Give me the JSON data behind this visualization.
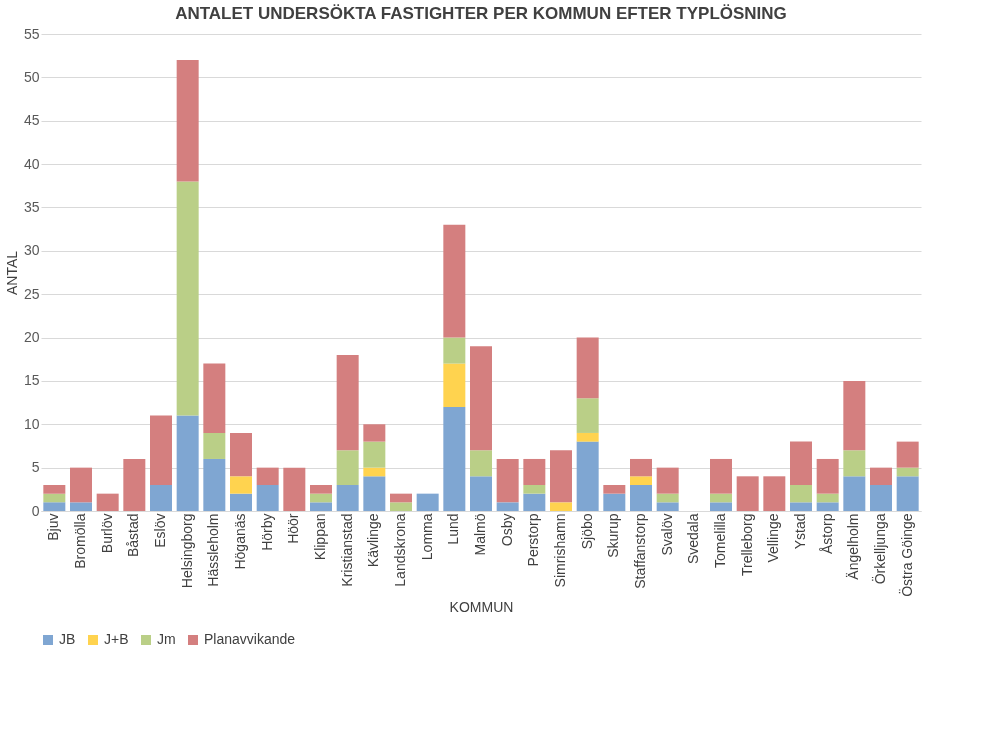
{
  "chart_data": {
    "type": "bar",
    "title": "ANTALET UNDERSÖKTA FASTIGHTER PER KOMMUN EFTER TYPLÖSNING",
    "xlabel": "KOMMUN",
    "ylabel": "ANTAL",
    "categories": [
      "Bjuv",
      "Bromölla",
      "Burlöv",
      "Båstad",
      "Eslöv",
      "Helsingborg",
      "Hässleholm",
      "Höganäs",
      "Hörby",
      "Höör",
      "Klippan",
      "Kristianstad",
      "Kävlinge",
      "Landskrona",
      "Lomma",
      "Lund",
      "Malmö",
      "Osby",
      "Perstorp",
      "Simrishamn",
      "Sjöbo",
      "Skurup",
      "Staffanstorp",
      "Svalöv",
      "Svedala",
      "Tomelilla",
      "Trelleborg",
      "Vellinge",
      "Ystad",
      "Åstorp",
      "Ängelholm",
      "Örkelljunga",
      "Östra Göinge"
    ],
    "series": [
      {
        "name": "JB",
        "color": "#7fa6d2",
        "values": [
          1,
          1,
          0,
          0,
          3,
          11,
          6,
          2,
          3,
          0,
          1,
          3,
          4,
          0,
          2,
          12,
          4,
          1,
          2,
          0,
          8,
          2,
          3,
          1,
          0,
          1,
          0,
          0,
          1,
          1,
          4,
          3,
          4
        ]
      },
      {
        "name": "J+B",
        "color": "#ffd34f",
        "values": [
          0,
          0,
          0,
          0,
          0,
          0,
          0,
          2,
          0,
          0,
          0,
          0,
          1,
          0,
          0,
          5,
          0,
          0,
          0,
          1,
          1,
          0,
          1,
          0,
          0,
          0,
          0,
          0,
          0,
          0,
          0,
          0,
          0
        ]
      },
      {
        "name": "Jm",
        "color": "#bacf87",
        "values": [
          1,
          0,
          0,
          0,
          0,
          27,
          3,
          0,
          0,
          0,
          1,
          4,
          3,
          1,
          0,
          3,
          3,
          0,
          1,
          0,
          4,
          0,
          0,
          1,
          0,
          1,
          0,
          0,
          2,
          1,
          3,
          0,
          1
        ]
      },
      {
        "name": "Planavvikande",
        "color": "#d47f7f",
        "values": [
          1,
          4,
          2,
          6,
          8,
          14,
          8,
          5,
          2,
          5,
          1,
          11,
          2,
          1,
          0,
          13,
          12,
          5,
          3,
          6,
          7,
          1,
          2,
          3,
          0,
          4,
          4,
          4,
          5,
          4,
          8,
          2,
          3
        ]
      }
    ],
    "stacked": true,
    "ylim": [
      0,
      55
    ],
    "yticks": [
      0,
      5,
      10,
      15,
      20,
      25,
      30,
      35,
      40,
      45,
      50,
      55
    ],
    "grid": "y",
    "legend": "bottom"
  }
}
